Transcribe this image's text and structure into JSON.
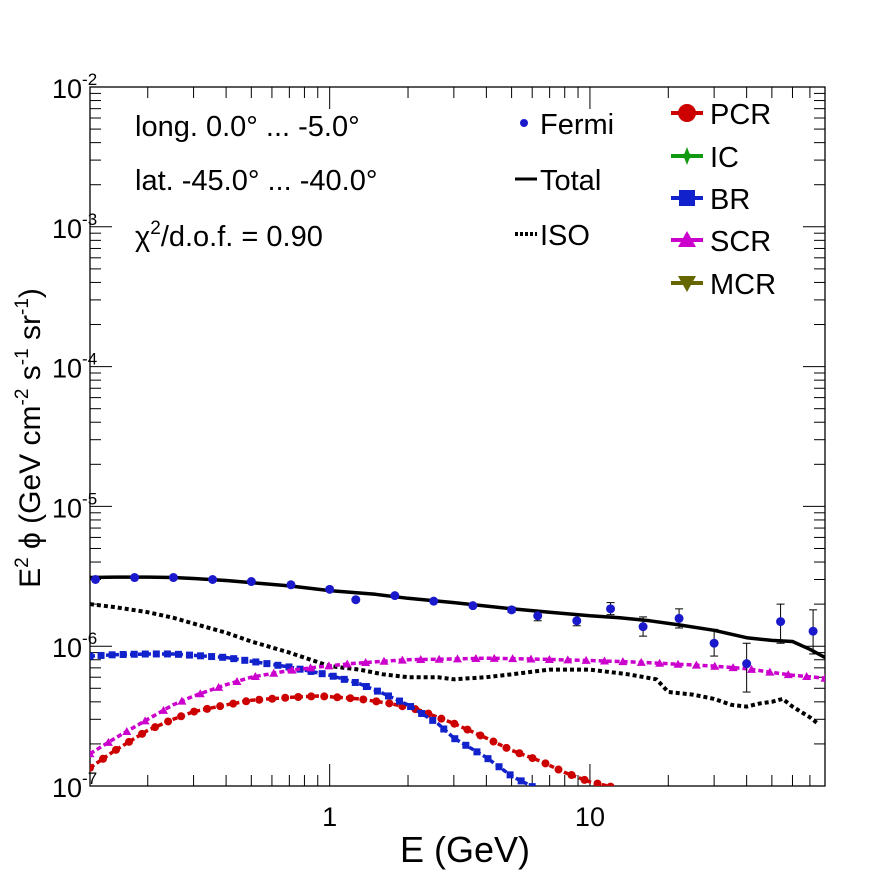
{
  "chart_data": {
    "type": "scatter",
    "title": "",
    "xlabel": "E (GeV)",
    "ylabel_parts": {
      "pre": "E",
      "sup1": "2",
      "mid": " ϕ (GeV cm",
      "sup2": "-2",
      "mid2": " s",
      "sup3": "-1",
      "mid3": " sr",
      "sup4": "-1",
      "post": ")"
    },
    "xscale": "log",
    "yscale": "log",
    "xlim": [
      0.12,
      80
    ],
    "ylim": [
      1e-07,
      0.01
    ],
    "x_tick_labels": [
      {
        "value": 1,
        "label": "1"
      },
      {
        "value": 10,
        "label": "10"
      }
    ],
    "y_tick_labels": [
      {
        "value": 1e-07,
        "base": "10",
        "exp": "-7"
      },
      {
        "value": 1e-06,
        "base": "10",
        "exp": "-6"
      },
      {
        "value": 1e-05,
        "base": "10",
        "exp": "-5"
      },
      {
        "value": 0.0001,
        "base": "10",
        "exp": "-4"
      },
      {
        "value": 0.001,
        "base": "10",
        "exp": "-3"
      },
      {
        "value": 0.01,
        "base": "10",
        "exp": "-2"
      }
    ],
    "annotations": {
      "longitude": "long. 0.0° ... -5.0°",
      "latitude": "lat. -45.0° ... -40.0°",
      "chi2_symbol": "χ",
      "chi2_sup": "2",
      "chi2_rest": "/d.o.f. = 0.90"
    },
    "legend": {
      "placement": "top-right",
      "left_entries": [
        {
          "label": "Fermi",
          "style": "points",
          "color": "#1a1acc"
        },
        {
          "label": "Total",
          "style": "solid",
          "color": "#000000"
        },
        {
          "label": "ISO",
          "style": "dotted",
          "color": "#000000"
        }
      ],
      "right_entries": [
        {
          "label": "PCR",
          "marker": "circle",
          "color": "#cc0000"
        },
        {
          "label": "IC",
          "marker": "star",
          "color": "#119911"
        },
        {
          "label": "BR",
          "marker": "square",
          "color": "#1122cc"
        },
        {
          "label": "SCR",
          "marker": "triangle",
          "color": "#cc00cc"
        },
        {
          "label": "MCR",
          "marker": "triangle-down",
          "color": "#666600"
        }
      ]
    },
    "fermi": {
      "name": "Fermi",
      "color": "#1a1acc",
      "x": [
        0.126,
        0.178,
        0.251,
        0.355,
        0.5,
        0.71,
        1.0,
        1.26,
        1.78,
        2.51,
        3.55,
        5.0,
        6.3,
        8.9,
        12.0,
        16.0,
        22.0,
        30.0,
        40.0,
        54.0,
        72.0
      ],
      "y": [
        3e-06,
        3.1e-06,
        3.1e-06,
        3e-06,
        2.9e-06,
        2.75e-06,
        2.55e-06,
        2.15e-06,
        2.3e-06,
        2.1e-06,
        1.95e-06,
        1.82e-06,
        1.65e-06,
        1.52e-06,
        1.85e-06,
        1.38e-06,
        1.58e-06,
        1.05e-06,
        7.5e-07,
        1.5e-06,
        1.28e-06
      ],
      "yerr_low": [
        3e-06,
        3.1e-06,
        3.1e-06,
        3e-06,
        2.9e-06,
        2.75e-06,
        2.55e-06,
        2.15e-06,
        2.3e-06,
        2.1e-06,
        1.95e-06,
        1.75e-06,
        1.52e-06,
        1.4e-06,
        1.68e-06,
        1.18e-06,
        1.35e-06,
        8.5e-07,
        4.7e-07,
        1.05e-06,
        8.8e-07
      ],
      "yerr_high": [
        3e-06,
        3.1e-06,
        3.1e-06,
        3e-06,
        2.9e-06,
        2.75e-06,
        2.55e-06,
        2.15e-06,
        2.3e-06,
        2.1e-06,
        1.95e-06,
        1.9e-06,
        1.8e-06,
        1.66e-06,
        2.05e-06,
        1.62e-06,
        1.85e-06,
        1.32e-06,
        1.05e-06,
        2e-06,
        1.82e-06
      ]
    },
    "series": [
      {
        "name": "Total",
        "color": "#000000",
        "style": "solid",
        "marker": "none",
        "x": [
          0.12,
          0.15,
          0.2,
          0.25,
          0.3,
          0.4,
          0.5,
          0.7,
          1.0,
          1.5,
          2.0,
          3.0,
          5.0,
          7.0,
          10.0,
          13.0,
          17.0,
          22.0,
          30.0,
          40.0,
          50.0,
          60.0,
          70.0,
          80.0
        ],
        "y": [
          3.1e-06,
          3.12e-06,
          3.12e-06,
          3.1e-06,
          3.05e-06,
          2.95e-06,
          2.85e-06,
          2.7e-06,
          2.5e-06,
          2.35e-06,
          2.2e-06,
          2.05e-06,
          1.85e-06,
          1.75e-06,
          1.65e-06,
          1.6e-06,
          1.52e-06,
          1.42e-06,
          1.3e-06,
          1.15e-06,
          1.1e-06,
          1.08e-06,
          9.5e-07,
          8.3e-07
        ]
      },
      {
        "name": "ISO",
        "color": "#000000",
        "style": "dotted",
        "marker": "none",
        "x": [
          0.12,
          0.15,
          0.2,
          0.25,
          0.3,
          0.4,
          0.5,
          0.7,
          1.0,
          1.3,
          1.6,
          2.0,
          2.6,
          3.0,
          4.0,
          5.0,
          7.0,
          10.0,
          14.0,
          18.0,
          20.0,
          25.0,
          30.0,
          35.0,
          40.0,
          45.0,
          50.0,
          55.0,
          60.0,
          70.0,
          75.0
        ],
        "y": [
          2e-06,
          1.9e-06,
          1.75e-06,
          1.6e-06,
          1.45e-06,
          1.25e-06,
          1.08e-06,
          9e-07,
          7.2e-07,
          6.8e-07,
          6.3e-07,
          6e-07,
          6e-07,
          5.8e-07,
          6e-07,
          6.3e-07,
          6.8e-07,
          6.8e-07,
          6.3e-07,
          5.8e-07,
          4.7e-07,
          4.5e-07,
          4.2e-07,
          3.8e-07,
          3.7e-07,
          3.9e-07,
          4e-07,
          4.2e-07,
          3.7e-07,
          3.1e-07,
          2.8e-07
        ]
      },
      {
        "name": "PCR",
        "color": "#cc0000",
        "style": "dashed",
        "marker": "circle",
        "x": [
          0.12,
          0.15,
          0.2,
          0.25,
          0.3,
          0.4,
          0.5,
          0.7,
          0.9,
          1.0,
          1.3,
          1.7,
          2.2,
          3.0,
          4.0,
          5.0,
          6.5,
          8.0,
          10.0,
          12.0
        ],
        "y": [
          1.35e-07,
          1.8e-07,
          2.5e-07,
          3e-07,
          3.4e-07,
          3.8e-07,
          4.1e-07,
          4.3e-07,
          4.4e-07,
          4.35e-07,
          4.2e-07,
          3.9e-07,
          3.5e-07,
          2.8e-07,
          2.2e-07,
          1.8e-07,
          1.5e-07,
          1.25e-07,
          1.07e-07,
          9.9e-08
        ]
      },
      {
        "name": "BR",
        "color": "#1122cc",
        "style": "dashed",
        "marker": "square",
        "x": [
          0.12,
          0.15,
          0.2,
          0.25,
          0.3,
          0.4,
          0.5,
          0.7,
          1.0,
          1.3,
          1.6,
          2.0,
          2.6,
          3.0,
          4.0,
          5.0,
          6.0
        ],
        "y": [
          8.5e-07,
          8.7e-07,
          8.8e-07,
          8.8e-07,
          8.6e-07,
          8.3e-07,
          7.8e-07,
          7.1e-07,
          6.2e-07,
          5.4e-07,
          4.6e-07,
          3.8e-07,
          2.8e-07,
          2.2e-07,
          1.6e-07,
          1.18e-07,
          9.9e-08
        ]
      },
      {
        "name": "SCR",
        "color": "#cc00cc",
        "style": "dashed",
        "marker": "triangle",
        "x": [
          0.12,
          0.15,
          0.2,
          0.25,
          0.3,
          0.4,
          0.5,
          0.7,
          0.9,
          1.2,
          1.6,
          2.0,
          3.0,
          4.0,
          6.0,
          10.0,
          15.0,
          20.0,
          30.0,
          40.0,
          50.0,
          60.0,
          80.0
        ],
        "y": [
          1.7e-07,
          2.2e-07,
          3e-07,
          3.8e-07,
          4.4e-07,
          5.3e-07,
          6e-07,
          6.7e-07,
          7.1e-07,
          7.5e-07,
          7.8e-07,
          8e-07,
          8.1e-07,
          8.2e-07,
          8.1e-07,
          7.9e-07,
          7.7e-07,
          7.5e-07,
          7.2e-07,
          6.9e-07,
          6.5e-07,
          6.2e-07,
          5.9e-07
        ]
      }
    ]
  }
}
